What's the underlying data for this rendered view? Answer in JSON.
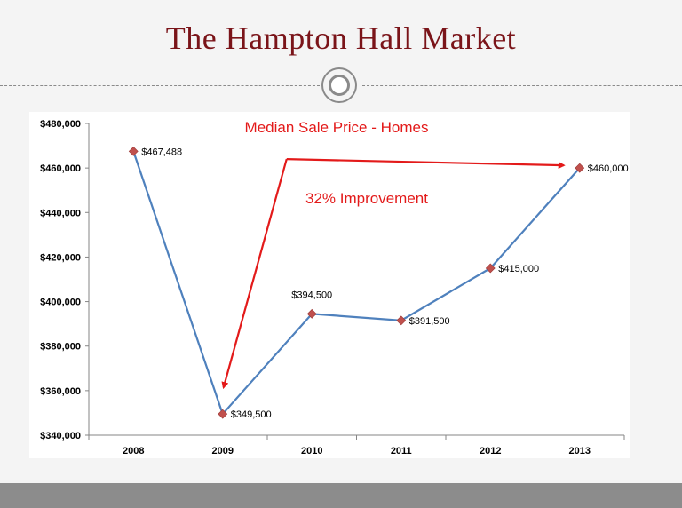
{
  "slide": {
    "title": "The Hampton Hall Market"
  },
  "chart_data": {
    "type": "line",
    "title": "Median Sale Price - Homes",
    "xlabel": "",
    "ylabel": "",
    "categories": [
      "2008",
      "2009",
      "2010",
      "2011",
      "2012",
      "2013"
    ],
    "series": [
      {
        "values": [
          467488,
          349500,
          394500,
          391500,
          415000,
          460000
        ],
        "data_labels": [
          "$467,488",
          "$349,500",
          "$394,500",
          "$391,500",
          "$415,000",
          "$460,000"
        ]
      }
    ],
    "ylim": [
      340000,
      480000
    ],
    "yticks": [
      340000,
      360000,
      380000,
      400000,
      420000,
      440000,
      460000,
      480000
    ],
    "ytick_labels": [
      "$340,000",
      "$360,000",
      "$380,000",
      "$400,000",
      "$420,000",
      "$440,000",
      "$460,000",
      "$480,000"
    ],
    "grid": false,
    "annotation": {
      "text": "32% Improvement",
      "from_category": "2009",
      "to_category": "2013"
    },
    "colors": {
      "line": "#4f81bd",
      "marker": "#c0504d",
      "title": "#e31a1a",
      "arrow": "#e31a1a"
    }
  }
}
